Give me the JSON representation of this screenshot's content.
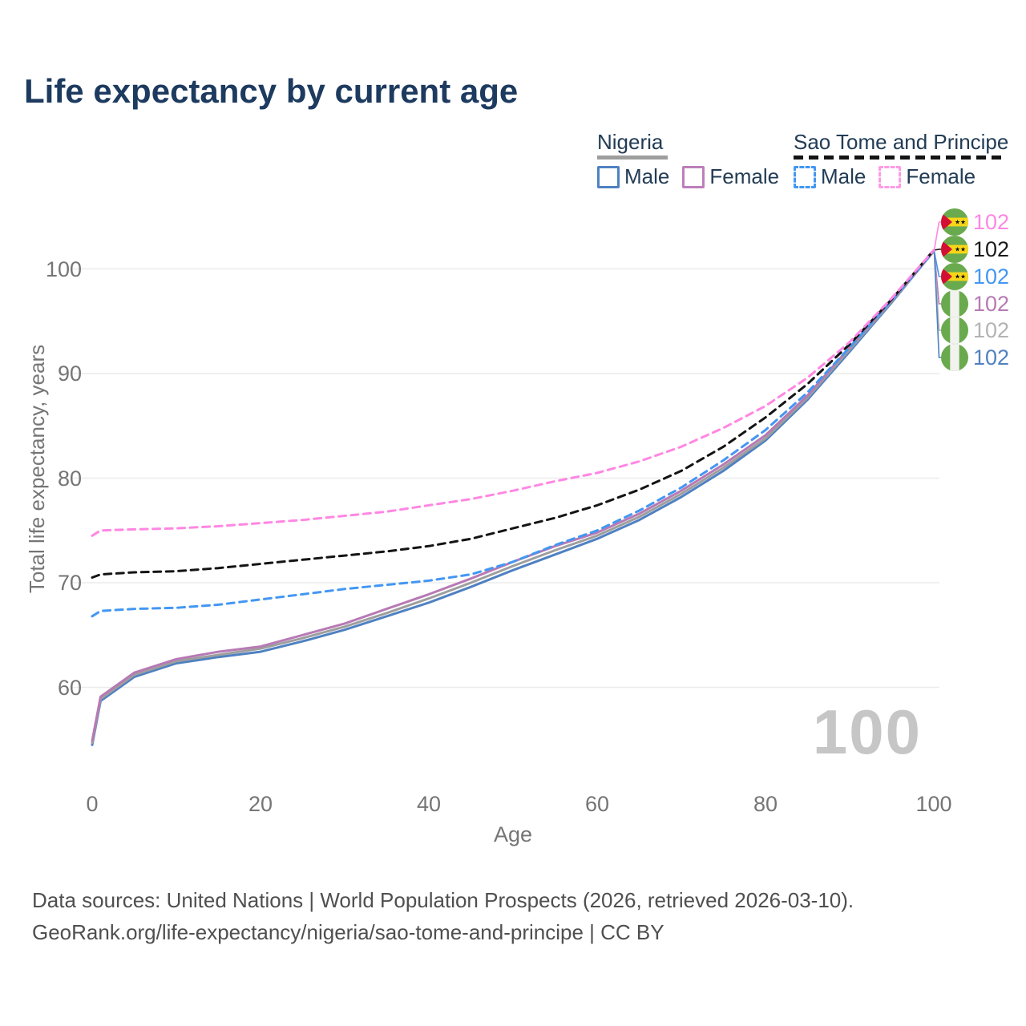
{
  "title": "Life expectancy by current age",
  "legend": {
    "groups": [
      {
        "country": "Nigeria",
        "line_style": "solid",
        "underline_color": "#9e9e9e",
        "items": [
          {
            "label": "Male",
            "color": "#4f81c2",
            "dashed": false
          },
          {
            "label": "Female",
            "color": "#bc7fba",
            "dashed": false
          }
        ]
      },
      {
        "country": "Sao Tome and Principe",
        "line_style": "dashed",
        "underline_color": "#141414",
        "items": [
          {
            "label": "Male",
            "color": "#4397f2",
            "dashed": true
          },
          {
            "label": "Female",
            "color": "#ff9ae6",
            "dashed": true
          }
        ]
      }
    ]
  },
  "chart_data": {
    "type": "line",
    "xlabel": "Age",
    "ylabel": "Total life expectancy, years",
    "watermark": "100",
    "xticks": [
      0,
      20,
      40,
      60,
      80,
      100
    ],
    "yticks": [
      60,
      70,
      80,
      90,
      100
    ],
    "xlim": [
      0,
      100
    ],
    "ylim": [
      54,
      103
    ],
    "grid": "horizontal",
    "legend_position": "top-right",
    "x": [
      0,
      1,
      5,
      10,
      15,
      20,
      25,
      30,
      35,
      40,
      45,
      50,
      55,
      60,
      65,
      70,
      75,
      80,
      85,
      90,
      95,
      100
    ],
    "series": [
      {
        "id": "stp_female",
        "name": "Sao Tome and Principe Female",
        "color": "#ff87e3",
        "dashed": true,
        "values": [
          74.5,
          75.0,
          75.1,
          75.2,
          75.4,
          75.7,
          76.0,
          76.4,
          76.8,
          77.4,
          78.0,
          78.8,
          79.7,
          80.5,
          81.6,
          83.0,
          84.8,
          86.9,
          89.6,
          93.0,
          97.2,
          101.8
        ]
      },
      {
        "id": "stp_total",
        "name": "Sao Tome and Principe Both sexes",
        "color": "#141414",
        "dashed": true,
        "values": [
          70.5,
          70.8,
          71.0,
          71.1,
          71.4,
          71.8,
          72.2,
          72.6,
          73.0,
          73.5,
          74.2,
          75.2,
          76.2,
          77.4,
          78.9,
          80.7,
          83.0,
          85.8,
          89.0,
          92.8,
          97.1,
          101.8
        ]
      },
      {
        "id": "stp_male",
        "name": "Sao Tome and Principe Male",
        "color": "#4397f2",
        "dashed": true,
        "values": [
          66.8,
          67.3,
          67.5,
          67.6,
          67.9,
          68.4,
          68.9,
          69.4,
          69.8,
          70.2,
          70.8,
          72.0,
          73.6,
          75.0,
          76.9,
          79.1,
          81.7,
          84.6,
          88.2,
          92.5,
          97.0,
          101.7
        ]
      },
      {
        "id": "nigeria_female",
        "name": "Nigeria Female",
        "color": "#b77ab4",
        "dashed": false,
        "values": [
          54.9,
          59.1,
          61.4,
          62.7,
          63.4,
          63.9,
          65.0,
          66.1,
          67.5,
          68.9,
          70.4,
          72.0,
          73.5,
          74.8,
          76.6,
          78.8,
          81.3,
          84.1,
          87.9,
          92.5,
          97.0,
          101.7
        ]
      },
      {
        "id": "nigeria_total",
        "name": "Nigeria Both sexes",
        "color": "#9e9e9e",
        "dashed": false,
        "values": [
          54.7,
          58.9,
          61.2,
          62.5,
          63.1,
          63.7,
          64.7,
          65.8,
          67.1,
          68.5,
          70.0,
          71.6,
          73.1,
          74.5,
          76.3,
          78.5,
          81.0,
          83.8,
          87.7,
          92.3,
          96.9,
          101.7
        ]
      },
      {
        "id": "nigeria_male",
        "name": "Nigeria Male",
        "color": "#4f81c2",
        "dashed": false,
        "values": [
          54.5,
          58.7,
          61.0,
          62.3,
          62.9,
          63.4,
          64.4,
          65.5,
          66.8,
          68.1,
          69.6,
          71.2,
          72.7,
          74.2,
          76.0,
          78.2,
          80.7,
          83.6,
          87.5,
          92.1,
          96.8,
          101.7
        ]
      }
    ],
    "end_labels": [
      {
        "value": "102",
        "color": "#ff87e3",
        "flag": "sao-tome-and-principe",
        "series_key": "stp_female"
      },
      {
        "value": "102",
        "color": "#1a1a1a",
        "flag": "sao-tome-and-principe",
        "series_key": "stp_total"
      },
      {
        "value": "102",
        "color": "#4397f2",
        "flag": "sao-tome-and-principe",
        "series_key": "stp_male"
      },
      {
        "value": "102",
        "color": "#b77ab4",
        "flag": "nigeria",
        "series_key": "nigeria_female"
      },
      {
        "value": "102",
        "color": "#b3b3b3",
        "flag": "nigeria",
        "series_key": "nigeria_total"
      },
      {
        "value": "102",
        "color": "#4f81c2",
        "flag": "nigeria",
        "series_key": "nigeria_male"
      }
    ],
    "flag_colors": {
      "green": "#6aaa4e",
      "white": "#f2f2ef",
      "yellow": "#f7d618",
      "red": "#d21034",
      "star": "#151515"
    }
  },
  "footer": {
    "line1": "Data sources: United Nations | World Population Prospects (2026, retrieved 2026-03-10).",
    "line2": "GeoRank.org/life-expectancy/nigeria/sao-tome-and-principe | CC BY"
  }
}
